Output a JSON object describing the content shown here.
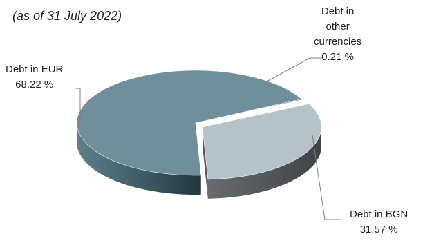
{
  "chart_data": {
    "type": "pie",
    "title": "",
    "subtitle": "(as of 31 July 2022)",
    "slices": [
      {
        "label": "Debt in EUR",
        "value": 68.22,
        "value_text": "68.22 %",
        "color": "#6f8f9a"
      },
      {
        "label": "Debt in BGN",
        "value": 31.57,
        "value_text": "31.57 %",
        "color": "#b3c3c8"
      },
      {
        "label": "Debt in other currencies",
        "label_lines": [
          "Debt in",
          "other",
          "currencies"
        ],
        "value": 0.21,
        "value_text": "0.21 %",
        "color": "#2e5560"
      }
    ],
    "exploded": "Debt in BGN",
    "style": "3d",
    "legend": "none"
  }
}
